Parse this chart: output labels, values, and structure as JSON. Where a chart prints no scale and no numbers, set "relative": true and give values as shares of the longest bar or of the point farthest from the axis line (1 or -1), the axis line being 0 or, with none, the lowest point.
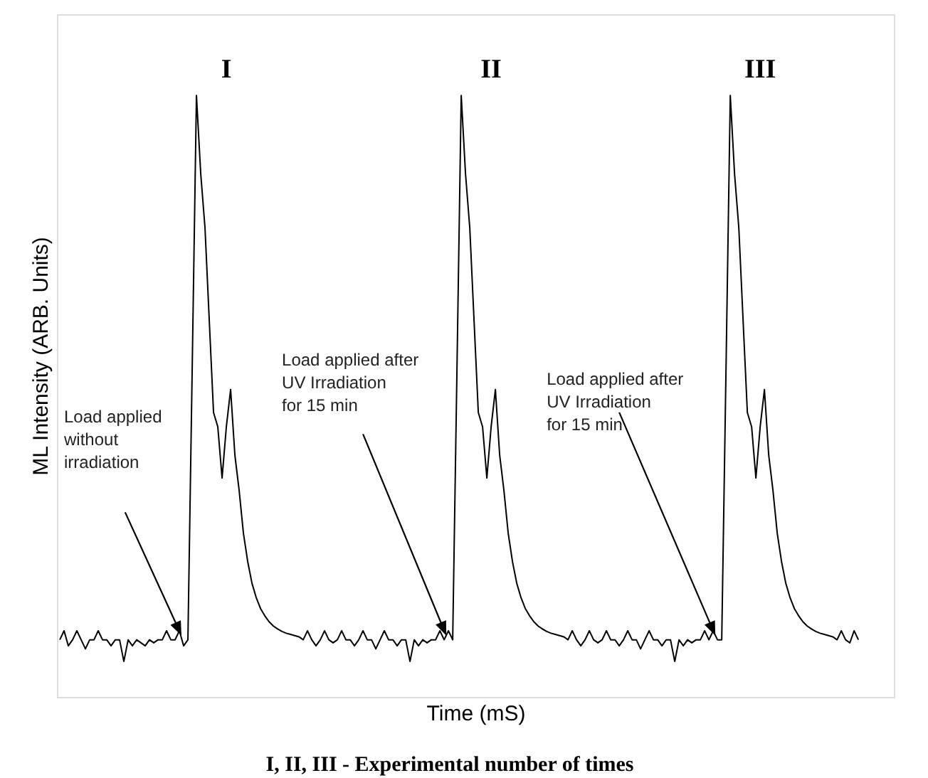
{
  "chart_data": {
    "type": "line",
    "relative": true,
    "xlabel": "Time (mS)",
    "ylabel": "ML Intensity (ARB. Units)",
    "categories": [
      null,
      null,
      null,
      null,
      null,
      null,
      null,
      null,
      null,
      null,
      null,
      null,
      null,
      null,
      null,
      null,
      null,
      null,
      null,
      null,
      null,
      null,
      null,
      null,
      null,
      null,
      null,
      null,
      null,
      null,
      null,
      null,
      null,
      null,
      null,
      null,
      null,
      null,
      null,
      null,
      null,
      null,
      null,
      null,
      null,
      null,
      null,
      null,
      null,
      null,
      null,
      null,
      null,
      null,
      null,
      null,
      null,
      null,
      null,
      null,
      null,
      null,
      null,
      null,
      null,
      null,
      null,
      null,
      null,
      null,
      null,
      null,
      null,
      null,
      null,
      null,
      null,
      null,
      null,
      null,
      null,
      null,
      null,
      null,
      null,
      null,
      null,
      null,
      null,
      null,
      null,
      null,
      null,
      null,
      null,
      null,
      null,
      null,
      null,
      null,
      null,
      null,
      null,
      null,
      null,
      null,
      null,
      null,
      null,
      null,
      null,
      null,
      null,
      null,
      null,
      null,
      null,
      null,
      null,
      null,
      null,
      null,
      null,
      null,
      null,
      null,
      null,
      null,
      null,
      null,
      null,
      null,
      null,
      null,
      null,
      null,
      null,
      null,
      null,
      null,
      null,
      null,
      null,
      null,
      null,
      null,
      null,
      null,
      null,
      null,
      null,
      null,
      null,
      null,
      null,
      null,
      null,
      null,
      null,
      null,
      null,
      null,
      null,
      null,
      null,
      null,
      null,
      null,
      null,
      null,
      null,
      null,
      null,
      null,
      null,
      null,
      null,
      null,
      null,
      null,
      null,
      null,
      null,
      null,
      null,
      null,
      null,
      null
    ],
    "series": [
      {
        "color": "#000000",
        "values": [
          0.095,
          0.11,
          0.085,
          0.095,
          0.11,
          0.095,
          0.08,
          0.095,
          0.095,
          0.11,
          0.095,
          0.095,
          0.085,
          0.095,
          0.095,
          0.059,
          0.095,
          0.085,
          0.095,
          0.09,
          0.085,
          0.095,
          0.09,
          0.095,
          0.095,
          0.11,
          0.095,
          0.095,
          0.11,
          0.085,
          0.095,
          0.544,
          1,
          0.87,
          0.78,
          0.626,
          0.473,
          0.449,
          0.364,
          0.449,
          0.511,
          0.402,
          0.343,
          0.272,
          0.225,
          0.189,
          0.165,
          0.147,
          0.135,
          0.125,
          0.118,
          0.113,
          0.109,
          0.106,
          0.104,
          0.102,
          0.1,
          0.095,
          0.11,
          0.095,
          0.085,
          0.095,
          0.11,
          0.095,
          0.09,
          0.095,
          0.11,
          0.095,
          0.095,
          0.085,
          0.095,
          0.11,
          0.095,
          0.095,
          0.08,
          0.095,
          0.11,
          0.095,
          0.095,
          0.085,
          0.095,
          0.095,
          0.059,
          0.095,
          0.085,
          0.095,
          0.09,
          0.095,
          0.095,
          0.11,
          0.095,
          0.11,
          0.095,
          0.544,
          1,
          0.87,
          0.78,
          0.626,
          0.473,
          0.449,
          0.364,
          0.449,
          0.511,
          0.402,
          0.343,
          0.272,
          0.225,
          0.189,
          0.165,
          0.147,
          0.135,
          0.125,
          0.118,
          0.113,
          0.109,
          0.106,
          0.104,
          0.102,
          0.1,
          0.095,
          0.11,
          0.095,
          0.085,
          0.095,
          0.11,
          0.095,
          0.09,
          0.095,
          0.11,
          0.095,
          0.095,
          0.085,
          0.095,
          0.11,
          0.095,
          0.095,
          0.08,
          0.095,
          0.11,
          0.095,
          0.095,
          0.085,
          0.095,
          0.095,
          0.059,
          0.095,
          0.085,
          0.095,
          0.09,
          0.095,
          0.095,
          0.11,
          0.095,
          0.11,
          0.095,
          0.095,
          0.544,
          1,
          0.87,
          0.78,
          0.626,
          0.473,
          0.449,
          0.364,
          0.449,
          0.511,
          0.402,
          0.343,
          0.272,
          0.225,
          0.189,
          0.165,
          0.147,
          0.135,
          0.125,
          0.118,
          0.113,
          0.109,
          0.106,
          0.104,
          0.102,
          0.1,
          0.095,
          0.11,
          0.095,
          0.09,
          0.11,
          0.095
        ]
      }
    ],
    "annotations": [
      "I",
      "II",
      "III",
      "Load applied\nwithout\nirradiation",
      "Load applied after\nUV Irradiation\nfor 15 min",
      "Load applied after\nUV Irradiation\nfor 15 min",
      "I, II, III - Experimental number of times"
    ]
  }
}
